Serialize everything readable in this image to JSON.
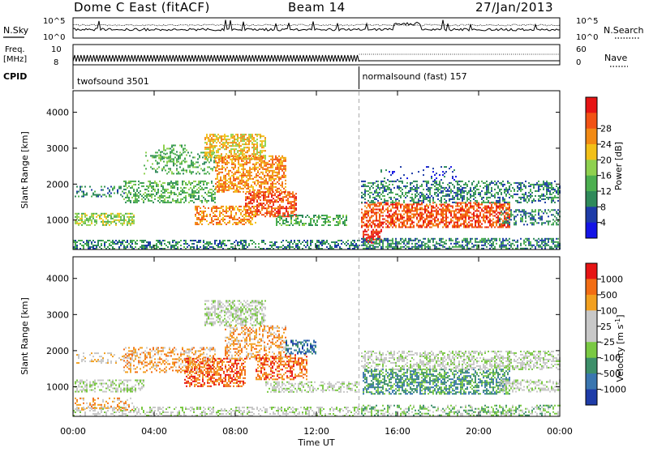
{
  "header": {
    "radar": "Dome C East (fitACF)",
    "beam": "Beam 14",
    "date": "27/Jan/2013"
  },
  "strips": {
    "nsky_label": "N.Sky",
    "nsky_ticks": [
      "10^5",
      "10^0"
    ],
    "nsearch_label": "N.Search",
    "nsearch_ticks": [
      "10^5",
      "10^0"
    ],
    "freq_label_1": "Freq.",
    "freq_label_2": "[MHz]",
    "freq_ticks": [
      "10",
      "8"
    ],
    "nave_label": "Nave",
    "nave_ticks": [
      "60",
      "0"
    ],
    "cpid_label": "CPID",
    "cpid_programs": [
      {
        "name": "twofsound 3501",
        "start_hour": 0,
        "end_hour": 14.1
      },
      {
        "name": "normalsound (fast) 157",
        "start_hour": 14.1,
        "end_hour": 24
      }
    ]
  },
  "chart_data": [
    {
      "type": "heatmap",
      "parameter": "power",
      "xlabel": "",
      "ylabel": "Slant Range [km]",
      "xlim": [
        0,
        24
      ],
      "ylim": [
        180,
        4600
      ],
      "y_ticks": [
        1000,
        2000,
        3000,
        4000
      ],
      "x_ticks": [
        0,
        4,
        8,
        12,
        16,
        20,
        24
      ],
      "colorbar": {
        "label": "Power [dB]",
        "ticks": [
          "4",
          "8",
          "12",
          "16",
          "20",
          "24",
          "28"
        ],
        "colors": [
          "#1414e6",
          "#1e3ca8",
          "#2f8a5a",
          "#4caf50",
          "#8fd14f",
          "#f2c018",
          "#f28a14",
          "#f25214",
          "#e61414"
        ]
      },
      "regions": [
        {
          "t0": 0.0,
          "t1": 14.1,
          "r0": 200,
          "r1": 450,
          "level": 2,
          "density": 0.5
        },
        {
          "t0": 0.1,
          "t1": 3.0,
          "r0": 850,
          "r1": 1200,
          "level": 4,
          "density": 0.55
        },
        {
          "t0": 0.1,
          "t1": 2.5,
          "r0": 1650,
          "r1": 1950,
          "level": 2,
          "density": 0.35
        },
        {
          "t0": 2.5,
          "t1": 7.0,
          "r0": 1500,
          "r1": 2100,
          "level": 3,
          "density": 0.45
        },
        {
          "t0": 3.5,
          "t1": 7.0,
          "r0": 2300,
          "r1": 2900,
          "level": 3,
          "density": 0.3
        },
        {
          "t0": 4.2,
          "t1": 5.6,
          "r0": 2600,
          "r1": 3100,
          "level": 3,
          "density": 0.3
        },
        {
          "t0": 6.5,
          "t1": 9.5,
          "r0": 2700,
          "r1": 3400,
          "level": 5,
          "density": 0.6
        },
        {
          "t0": 7.0,
          "t1": 10.5,
          "r0": 1800,
          "r1": 2800,
          "level": 6,
          "density": 0.55
        },
        {
          "t0": 8.5,
          "t1": 11.0,
          "r0": 1100,
          "r1": 1800,
          "level": 7,
          "density": 0.6
        },
        {
          "t0": 6.0,
          "t1": 9.0,
          "r0": 900,
          "r1": 1400,
          "level": 6,
          "density": 0.5
        },
        {
          "t0": 10.0,
          "t1": 13.5,
          "r0": 850,
          "r1": 1150,
          "level": 3,
          "density": 0.45
        },
        {
          "t0": 14.2,
          "t1": 21.5,
          "r0": 800,
          "r1": 1500,
          "level": 7,
          "density": 0.6
        },
        {
          "t0": 14.3,
          "t1": 15.2,
          "r0": 350,
          "r1": 750,
          "level": 8,
          "density": 0.7
        },
        {
          "t0": 14.2,
          "t1": 24.0,
          "r0": 1500,
          "r1": 2100,
          "level": 2,
          "density": 0.45
        },
        {
          "t0": 14.2,
          "t1": 24.0,
          "r0": 200,
          "r1": 500,
          "level": 2,
          "density": 0.55
        },
        {
          "t0": 15.0,
          "t1": 19.0,
          "r0": 2100,
          "r1": 2500,
          "level": 1,
          "density": 0.12
        },
        {
          "t0": 21.0,
          "t1": 24.0,
          "r0": 850,
          "r1": 1300,
          "level": 2,
          "density": 0.4
        }
      ]
    },
    {
      "type": "heatmap",
      "parameter": "velocity",
      "xlabel": "Time UT",
      "ylabel": "Slant Range [km]",
      "xlim": [
        0,
        24
      ],
      "ylim": [
        180,
        4600
      ],
      "y_ticks": [
        1000,
        2000,
        3000,
        4000
      ],
      "x_ticks": [
        0,
        4,
        8,
        12,
        16,
        20,
        24
      ],
      "x_tick_labels": [
        "00:00",
        "04:00",
        "08:00",
        "12:00",
        "16:00",
        "20:00",
        "00:00"
      ],
      "colorbar": {
        "label": "Velocity  [m s^-1]",
        "ticks": [
          "1000",
          "500",
          "100",
          "25",
          "-25",
          "-100",
          "-500",
          "-1000"
        ],
        "colors": [
          "#1e3ca8",
          "#3a76b0",
          "#3d8f6a",
          "#7ac943",
          "#c8c8c8",
          "#c8c8c8",
          "#f2a020",
          "#f26d14",
          "#e61414"
        ]
      },
      "regions": [
        {
          "t0": 0.0,
          "t1": 14.1,
          "r0": 200,
          "r1": 450,
          "level": 4,
          "density": 0.4
        },
        {
          "t0": 0.1,
          "t1": 3.5,
          "r0": 850,
          "r1": 1200,
          "level": 4,
          "density": 0.5
        },
        {
          "t0": 0.1,
          "t1": 3.0,
          "r0": 350,
          "r1": 700,
          "level": 6,
          "density": 0.35
        },
        {
          "t0": 0.1,
          "t1": 3.0,
          "r0": 1650,
          "r1": 1950,
          "level": 5,
          "density": 0.3
        },
        {
          "t0": 2.5,
          "t1": 7.0,
          "r0": 1400,
          "r1": 2100,
          "level": 6,
          "density": 0.4
        },
        {
          "t0": 5.5,
          "t1": 8.5,
          "r0": 1000,
          "r1": 1800,
          "level": 7,
          "density": 0.55
        },
        {
          "t0": 6.5,
          "t1": 9.5,
          "r0": 2700,
          "r1": 3400,
          "level": 4,
          "density": 0.55
        },
        {
          "t0": 7.5,
          "t1": 10.5,
          "r0": 1800,
          "r1": 2700,
          "level": 6,
          "density": 0.45
        },
        {
          "t0": 9.0,
          "t1": 11.5,
          "r0": 1200,
          "r1": 1900,
          "level": 7,
          "density": 0.5
        },
        {
          "t0": 10.5,
          "t1": 12.0,
          "r0": 1900,
          "r1": 2300,
          "level": 1,
          "density": 0.5
        },
        {
          "t0": 9.5,
          "t1": 14.0,
          "r0": 850,
          "r1": 1150,
          "level": 4,
          "density": 0.5
        },
        {
          "t0": 14.3,
          "t1": 21.5,
          "r0": 800,
          "r1": 1500,
          "level": 2,
          "density": 0.6
        },
        {
          "t0": 14.2,
          "t1": 24.0,
          "r0": 1500,
          "r1": 2000,
          "level": 4,
          "density": 0.5
        },
        {
          "t0": 14.2,
          "t1": 24.0,
          "r0": 200,
          "r1": 500,
          "level": 3,
          "density": 0.4
        },
        {
          "t0": 21.0,
          "t1": 24.0,
          "r0": 850,
          "r1": 1200,
          "level": 4,
          "density": 0.45
        }
      ]
    }
  ]
}
